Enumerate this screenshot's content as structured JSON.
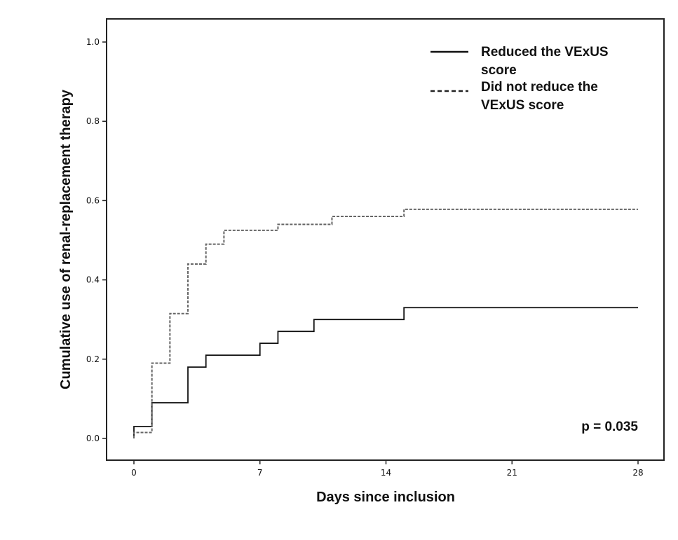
{
  "chart_data": {
    "type": "line",
    "subtype": "step",
    "title": "",
    "xlabel": "Days since inclusion",
    "ylabel": "Cumulative use of renal-replacement therapy",
    "xlim": [
      0,
      28
    ],
    "ylim": [
      0,
      1.0
    ],
    "xticks": [
      0,
      7,
      14,
      21,
      28
    ],
    "yticks": [
      0.0,
      0.2,
      0.4,
      0.6,
      0.8,
      1.0
    ],
    "ytick_labels": [
      "0.0",
      "0.2",
      "0.4",
      "0.6",
      "0.8",
      "1.0"
    ],
    "grid": false,
    "legend_position": "top-right",
    "annotation": "p = 0.035",
    "series": [
      {
        "name": "Reduced the VExUS score",
        "name_lines": [
          "Reduced the VExUS",
          "score"
        ],
        "style": "solid",
        "color": "#111111",
        "x": [
          0,
          1,
          3,
          4,
          7,
          8,
          10,
          15,
          28
        ],
        "y": [
          0.03,
          0.09,
          0.18,
          0.21,
          0.24,
          0.27,
          0.3,
          0.33,
          0.33
        ]
      },
      {
        "name": "Did not reduce the VExUS score",
        "name_lines": [
          "Did not reduce the",
          "VExUS score"
        ],
        "style": "dashed",
        "color": "#666666",
        "x": [
          0,
          1,
          2,
          3,
          4,
          5,
          8,
          11,
          15,
          28
        ],
        "y": [
          0.015,
          0.19,
          0.315,
          0.44,
          0.49,
          0.525,
          0.54,
          0.56,
          0.578,
          0.578
        ]
      }
    ]
  }
}
